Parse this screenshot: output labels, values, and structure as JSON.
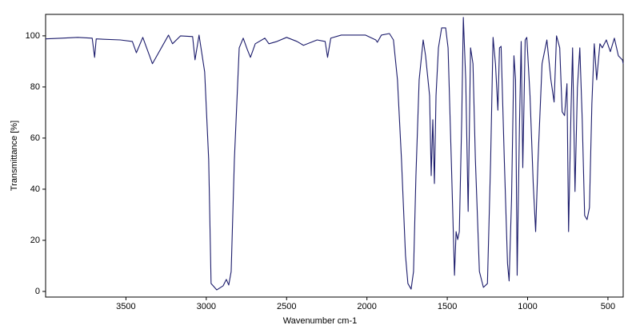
{
  "chart_data": {
    "type": "line",
    "xlabel": "Wavenumber cm-1",
    "ylabel": "Transmittance [%]",
    "color": "#1b1b6b",
    "xlim": [
      4000,
      405
    ],
    "ylim": [
      -2.2,
      108.4
    ],
    "xticks": [
      3500,
      3000,
      2500,
      2000,
      1500,
      1000,
      500
    ],
    "yticks": [
      0,
      20,
      40,
      60,
      80,
      100
    ],
    "x": [
      4000,
      3900,
      3800,
      3710,
      3695,
      3685,
      3535,
      3460,
      3435,
      3395,
      3335,
      3235,
      3210,
      3160,
      3085,
      3070,
      3045,
      3010,
      2985,
      2970,
      2935,
      2895,
      2875,
      2860,
      2845,
      2825,
      2795,
      2770,
      2745,
      2725,
      2695,
      2635,
      2610,
      2560,
      2500,
      2435,
      2395,
      2310,
      2260,
      2245,
      2225,
      2160,
      2010,
      1945,
      1935,
      1910,
      1860,
      1835,
      1810,
      1785,
      1760,
      1745,
      1725,
      1710,
      1695,
      1675,
      1650,
      1635,
      1610,
      1600,
      1590,
      1580,
      1570,
      1555,
      1535,
      1510,
      1495,
      1475,
      1455,
      1445,
      1435,
      1425,
      1410,
      1400,
      1385,
      1370,
      1355,
      1340,
      1325,
      1300,
      1275,
      1250,
      1230,
      1215,
      1200,
      1185,
      1175,
      1165,
      1145,
      1125,
      1115,
      1100,
      1085,
      1075,
      1065,
      1050,
      1040,
      1030,
      1015,
      1005,
      985,
      965,
      950,
      935,
      910,
      880,
      855,
      835,
      820,
      800,
      785,
      770,
      755,
      745,
      730,
      720,
      705,
      690,
      675,
      660,
      645,
      630,
      615,
      600,
      585,
      570,
      550,
      535,
      510,
      485,
      460,
      435,
      410,
      405
    ],
    "values": [
      98.8,
      99.1,
      99.4,
      99.1,
      91.6,
      98.8,
      98.4,
      97.8,
      93.4,
      99.4,
      89.1,
      100.3,
      96.9,
      100,
      99.7,
      90.6,
      100.3,
      85.9,
      51.6,
      3.1,
      0.6,
      2.2,
      4.7,
      2.5,
      7.8,
      51.6,
      95.3,
      99.1,
      94.7,
      91.6,
      96.9,
      99.1,
      96.9,
      97.8,
      99.4,
      97.8,
      96.3,
      98.4,
      97.8,
      91.6,
      99.1,
      100.3,
      100.3,
      98.4,
      97.5,
      100.3,
      100.9,
      98.4,
      82.8,
      51.6,
      14.1,
      3.1,
      0.9,
      7.8,
      45.3,
      82.8,
      98.4,
      92.2,
      76.6,
      45.3,
      67.2,
      42.2,
      76.6,
      95.3,
      103.1,
      103.1,
      95.3,
      51.6,
      6.3,
      23.4,
      20.3,
      23.4,
      67.2,
      107.2,
      82.8,
      31.3,
      95.3,
      89.1,
      51.6,
      7.8,
      1.6,
      3.1,
      51.6,
      99.4,
      89.1,
      70.9,
      95.3,
      95.9,
      51.6,
      10.9,
      4.1,
      35.9,
      92.2,
      82.8,
      6.3,
      67.2,
      97.8,
      48.4,
      98.4,
      99.4,
      76.6,
      42.2,
      23.4,
      51.6,
      89.1,
      98.4,
      82.8,
      74.1,
      100,
      95.3,
      70.3,
      68.8,
      81.3,
      23.4,
      70.3,
      95.3,
      39.1,
      79.7,
      95.3,
      67.2,
      29.7,
      28.1,
      32.8,
      73.4,
      96.9,
      82.8,
      96.9,
      95.3,
      98.4,
      93.8,
      99.1,
      92.2,
      90.6,
      89.1
    ]
  }
}
